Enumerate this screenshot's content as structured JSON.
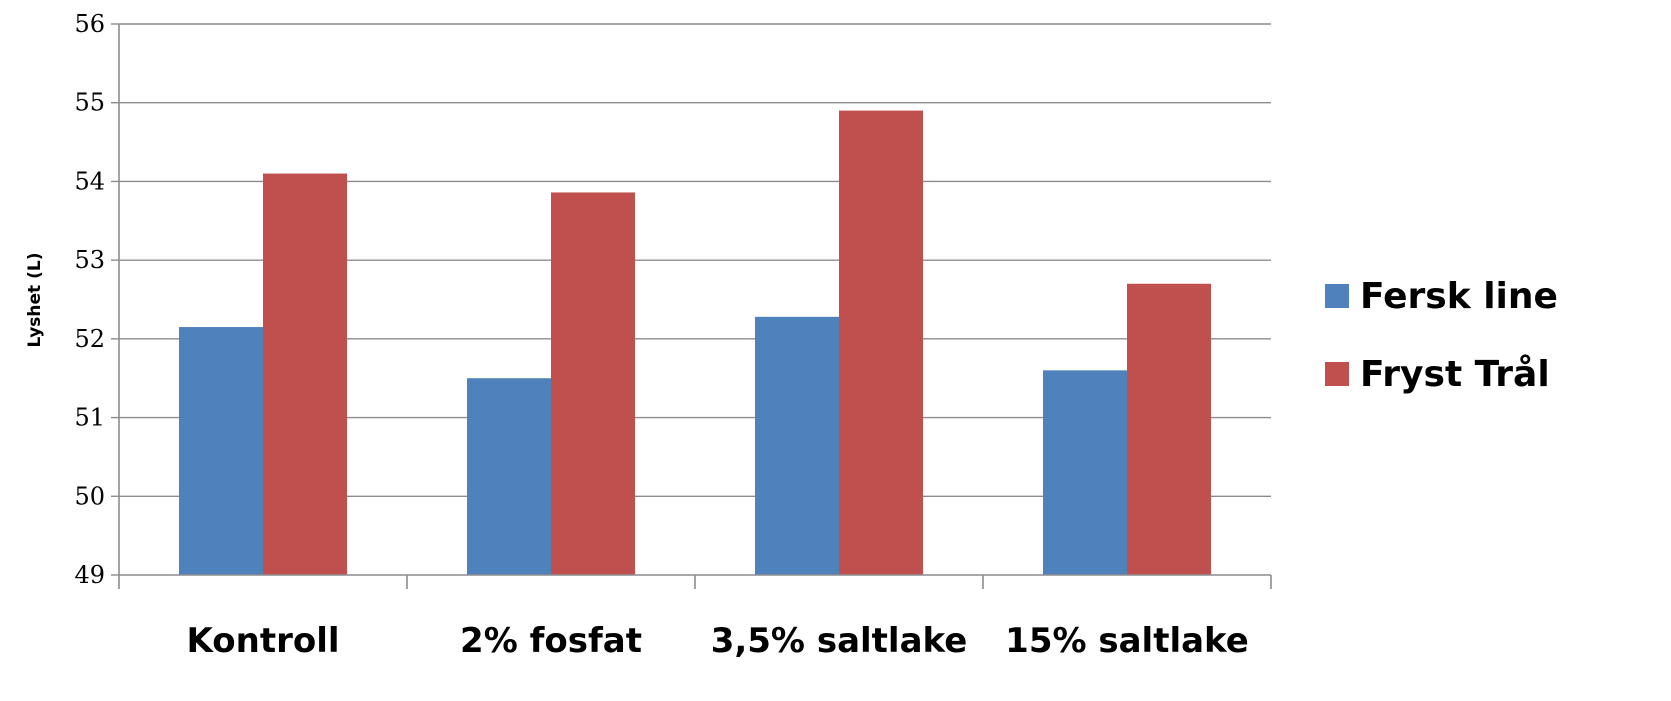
{
  "chart_data": {
    "type": "bar",
    "categories": [
      "Kontroll",
      "2% fosfat",
      "3,5% saltlake",
      "15% saltlake"
    ],
    "series": [
      {
        "name": "Fersk line",
        "values": [
          52.15,
          51.5,
          52.28,
          51.6
        ],
        "color": "#4f81bd"
      },
      {
        "name": "Fryst Trål",
        "values": [
          54.1,
          53.86,
          54.9,
          52.7
        ],
        "color": "#c0504d"
      }
    ],
    "title": "",
    "xlabel": "",
    "ylabel": "Lyshet (L)",
    "ylim": [
      49,
      56
    ],
    "yticks": [
      "49",
      "50",
      "51",
      "52",
      "53",
      "54",
      "55",
      "56"
    ],
    "grid": true,
    "legend_position": "right"
  }
}
